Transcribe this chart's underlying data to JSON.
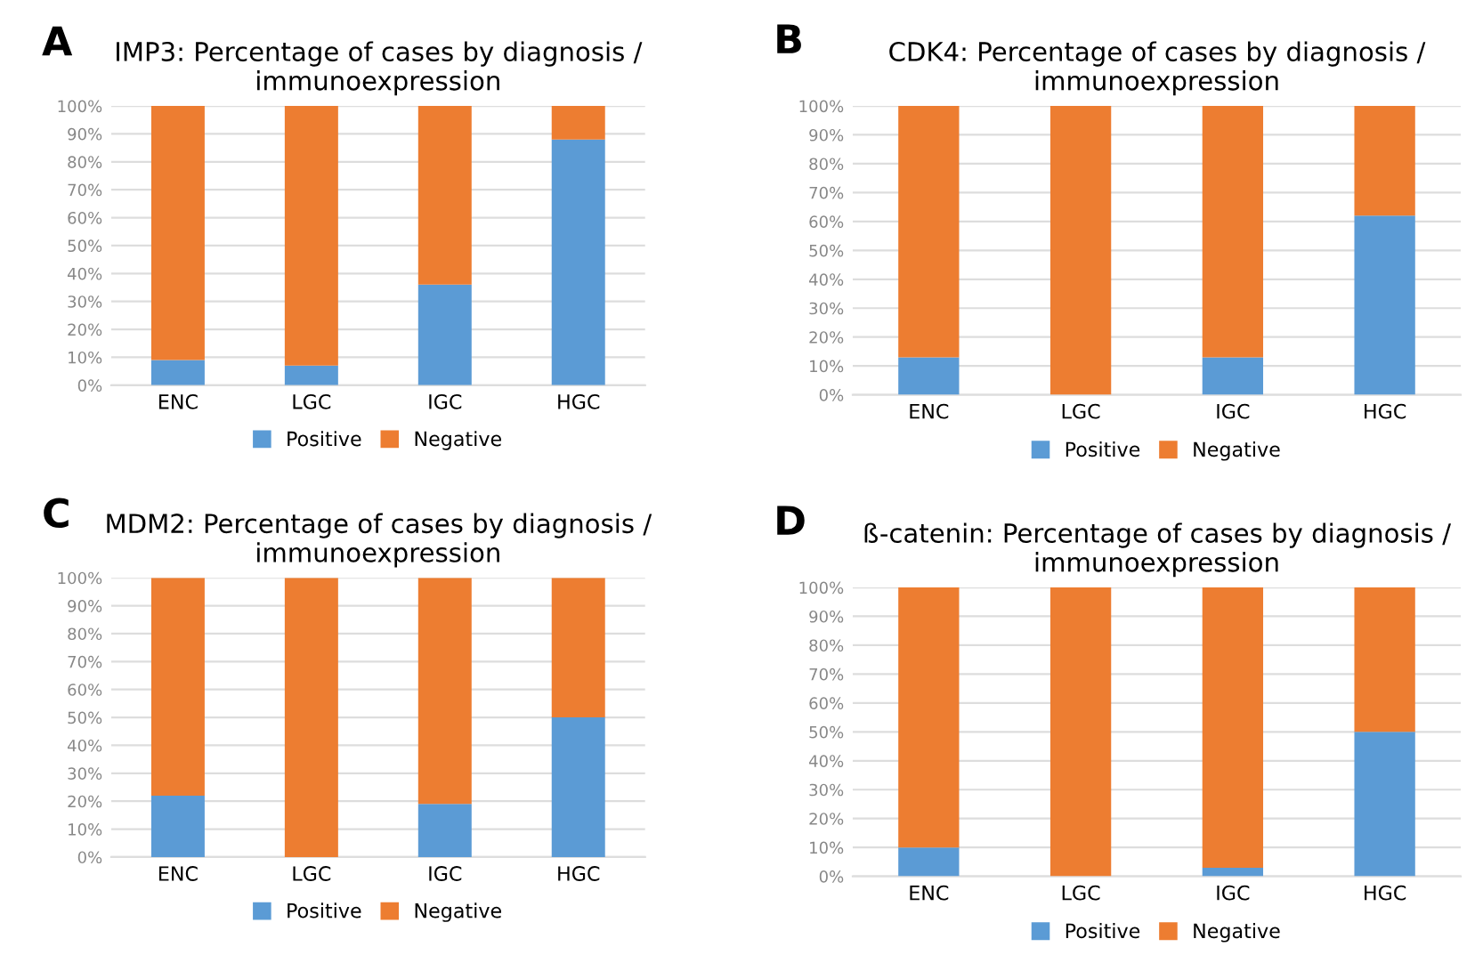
{
  "chart_data": [
    {
      "type": "bar",
      "stacked": true,
      "title": "IMP3: Percentage of cases by diagnosis / immunoexpression",
      "annotations": [
        "A"
      ],
      "categories": [
        "ENC",
        "LGC",
        "IGC",
        "HGC"
      ],
      "series": [
        {
          "name": "Positive",
          "color": "#5b9bd5",
          "values": [
            9,
            7,
            36,
            88
          ]
        },
        {
          "name": "Negative",
          "color": "#ed7d31",
          "values": [
            91,
            93,
            64,
            12
          ]
        }
      ],
      "ylim": [
        0,
        100
      ],
      "yticks": [
        {
          "value": 0,
          "label": "0%"
        },
        {
          "value": 10,
          "label": "10%"
        },
        {
          "value": 20,
          "label": "20%"
        },
        {
          "value": 30,
          "label": "30%"
        },
        {
          "value": 40,
          "label": "40%"
        },
        {
          "value": 50,
          "label": "50%"
        },
        {
          "value": 60,
          "label": "60%"
        },
        {
          "value": 70,
          "label": "70%"
        },
        {
          "value": 80,
          "label": "80%"
        },
        {
          "value": 90,
          "label": "90%"
        },
        {
          "value": 100,
          "label": "100%"
        }
      ],
      "grid": "y",
      "legend": "bottom"
    },
    {
      "type": "bar",
      "stacked": true,
      "title": "CDK4: Percentage of cases by diagnosis / immunoexpression",
      "annotations": [
        "B"
      ],
      "categories": [
        "ENC",
        "LGC",
        "IGC",
        "HGC"
      ],
      "series": [
        {
          "name": "Positive",
          "color": "#5b9bd5",
          "values": [
            13,
            0,
            13,
            62
          ]
        },
        {
          "name": "Negative",
          "color": "#ed7d31",
          "values": [
            87,
            100,
            87,
            38
          ]
        }
      ],
      "ylim": [
        0,
        100
      ],
      "yticks": [
        {
          "value": 0,
          "label": "0%"
        },
        {
          "value": 10,
          "label": "10%"
        },
        {
          "value": 20,
          "label": "20%"
        },
        {
          "value": 30,
          "label": "30%"
        },
        {
          "value": 40,
          "label": "40%"
        },
        {
          "value": 50,
          "label": "50%"
        },
        {
          "value": 60,
          "label": "60%"
        },
        {
          "value": 70,
          "label": "70%"
        },
        {
          "value": 80,
          "label": "80%"
        },
        {
          "value": 90,
          "label": "90%"
        },
        {
          "value": 100,
          "label": "100%"
        }
      ],
      "grid": "y",
      "legend": "bottom"
    },
    {
      "type": "bar",
      "stacked": true,
      "title": "MDM2: Percentage of cases by diagnosis / immunoexpression",
      "annotations": [
        "C"
      ],
      "categories": [
        "ENC",
        "LGC",
        "IGC",
        "HGC"
      ],
      "series": [
        {
          "name": "Positive",
          "color": "#5b9bd5",
          "values": [
            22,
            0,
            19,
            50
          ]
        },
        {
          "name": "Negative",
          "color": "#ed7d31",
          "values": [
            78,
            100,
            81,
            50
          ]
        }
      ],
      "ylim": [
        0,
        100
      ],
      "yticks": [
        {
          "value": 0,
          "label": "0%"
        },
        {
          "value": 10,
          "label": "10%"
        },
        {
          "value": 20,
          "label": "20%"
        },
        {
          "value": 30,
          "label": "30%"
        },
        {
          "value": 40,
          "label": "40%"
        },
        {
          "value": 50,
          "label": "50%"
        },
        {
          "value": 60,
          "label": "60%"
        },
        {
          "value": 70,
          "label": "70%"
        },
        {
          "value": 80,
          "label": "80%"
        },
        {
          "value": 90,
          "label": "90%"
        },
        {
          "value": 100,
          "label": "100%"
        }
      ],
      "grid": "y",
      "legend": "bottom"
    },
    {
      "type": "bar",
      "stacked": true,
      "title": "ß-catenin: Percentage of cases by diagnosis / immunoexpression",
      "annotations": [
        "D"
      ],
      "categories": [
        "ENC",
        "LGC",
        "IGC",
        "HGC"
      ],
      "series": [
        {
          "name": "Positive",
          "color": "#5b9bd5",
          "values": [
            10,
            0,
            3,
            50
          ]
        },
        {
          "name": "Negative",
          "color": "#ed7d31",
          "values": [
            90,
            100,
            97,
            50
          ]
        }
      ],
      "ylim": [
        0,
        100
      ],
      "yticks": [
        {
          "value": 0,
          "label": "0%"
        },
        {
          "value": 10,
          "label": "10%"
        },
        {
          "value": 20,
          "label": "20%"
        },
        {
          "value": 30,
          "label": "30%"
        },
        {
          "value": 40,
          "label": "40%"
        },
        {
          "value": 50,
          "label": "50%"
        },
        {
          "value": 60,
          "label": "60%"
        },
        {
          "value": 70,
          "label": "70%"
        },
        {
          "value": 80,
          "label": "80%"
        },
        {
          "value": 90,
          "label": "90%"
        },
        {
          "value": 100,
          "label": "100%"
        }
      ],
      "grid": "y",
      "legend": "bottom"
    }
  ]
}
